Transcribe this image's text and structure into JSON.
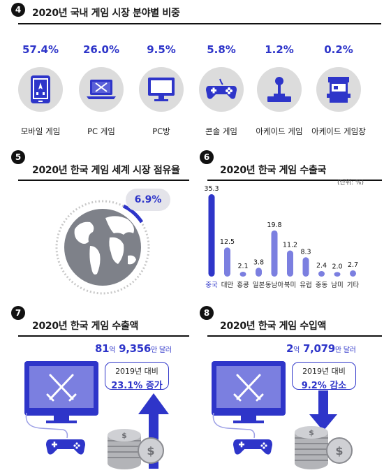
{
  "colors": {
    "accent": "#2e35c9",
    "bar": "#2e35c9",
    "bar_light": "#7b7fe0",
    "circle": "#dcdcdc"
  },
  "section4": {
    "number": "4",
    "title": "2020년 국내 게임 시장 분야별 비중",
    "items": [
      {
        "pct": "57.4%",
        "label": "모바일 게임",
        "icon": "mobile-phone-icon"
      },
      {
        "pct": "26.0%",
        "label": "PC 게임",
        "icon": "laptop-icon"
      },
      {
        "pct": "9.5%",
        "label": "PC방",
        "icon": "desktop-monitor-icon"
      },
      {
        "pct": "5.8%",
        "label": "콘솔 게임",
        "icon": "gamepad-icon"
      },
      {
        "pct": "1.2%",
        "label": "아케이드 게임",
        "icon": "joystick-icon"
      },
      {
        "pct": "0.2%",
        "label": "아케이드 게임장",
        "icon": "arcade-cabinet-icon"
      }
    ]
  },
  "section5": {
    "number": "5",
    "title": "2020년 한국 게임 세계 시장 점유율",
    "share_label": "6.9%",
    "share_value": 6.9
  },
  "section6": {
    "number": "6",
    "title": "2020년 한국 게임 수출국",
    "unit": "(단위: %)"
  },
  "chart_data": {
    "type": "bar",
    "title": "2020년 한국 게임 수출국",
    "ylabel": "",
    "unit": "(단위: %)",
    "categories": [
      "중국",
      "대만",
      "홍콩",
      "일본",
      "동남아",
      "북미",
      "유럽",
      "중동",
      "남미",
      "기타"
    ],
    "values": [
      35.3,
      12.5,
      2.1,
      3.8,
      19.8,
      11.2,
      8.3,
      2.4,
      2.0,
      2.7
    ],
    "value_labels": [
      "35.3",
      "12.5",
      "2.1",
      "3.8",
      "19.8",
      "11.2",
      "8.3",
      "2.4",
      "2.0",
      "2.7"
    ],
    "highlight_index": 0,
    "ylim": [
      0,
      35.3
    ],
    "grid": false,
    "legend": "none"
  },
  "section7": {
    "number": "7",
    "title": "2020년 한국 게임 수출액",
    "amount_big1": "81",
    "amount_unit1": "억",
    "amount_big2": " 9,356",
    "amount_unit2": "만 달러",
    "compare_line1": "2019년 대비",
    "compare_line2": "23.1% 증가",
    "direction": "up"
  },
  "section8": {
    "number": "8",
    "title": "2020년 한국 게임 수입액",
    "amount_big1": "2",
    "amount_unit1": "억",
    "amount_big2": " 7,079",
    "amount_unit2": "만 달러",
    "compare_line1": "2019년 대비",
    "compare_line2": "9.2% 감소",
    "direction": "down"
  }
}
